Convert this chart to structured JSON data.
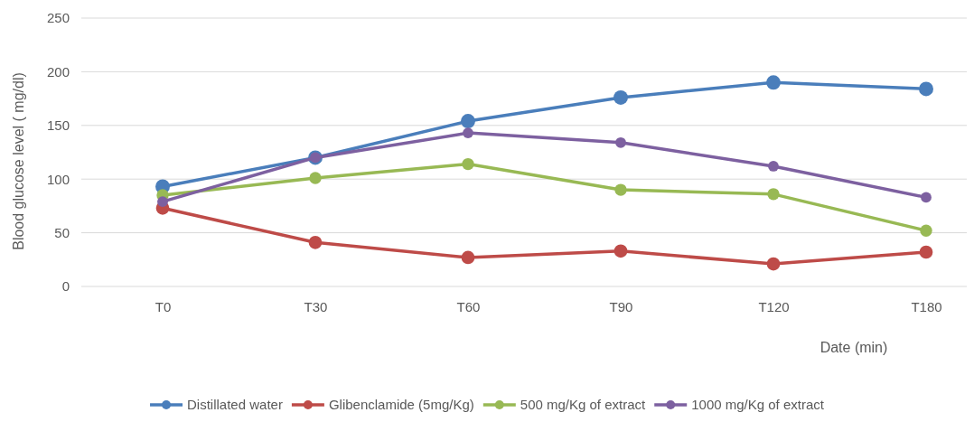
{
  "chart_data": {
    "type": "line",
    "xlabel": "Date (min)",
    "ylabel": "Blood glucose level ( mg/dl)",
    "categories": [
      "T0",
      "T30",
      "T60",
      "T90",
      "T120",
      "T180"
    ],
    "ylim": [
      0,
      250
    ],
    "yticks": [
      0,
      50,
      100,
      150,
      200,
      250
    ],
    "grid": "y",
    "legend": "bottom",
    "marker": "circle",
    "line_style": "solid",
    "series": [
      {
        "name": "Distillated water",
        "color": "#4a7ebb",
        "values": [
          93,
          120,
          154,
          176,
          190,
          184
        ]
      },
      {
        "name": "Glibenclamide (5mg/Kg)",
        "color": "#be4b48",
        "values": [
          73,
          41,
          27,
          33,
          21,
          32
        ]
      },
      {
        "name": "500 mg/Kg of extract",
        "color": "#98b954",
        "values": [
          85,
          101,
          114,
          90,
          86,
          52
        ]
      },
      {
        "name": "1000 mg/Kg of extract",
        "color": "#7d60a0",
        "values": [
          79,
          120,
          143,
          134,
          112,
          83
        ]
      }
    ]
  }
}
